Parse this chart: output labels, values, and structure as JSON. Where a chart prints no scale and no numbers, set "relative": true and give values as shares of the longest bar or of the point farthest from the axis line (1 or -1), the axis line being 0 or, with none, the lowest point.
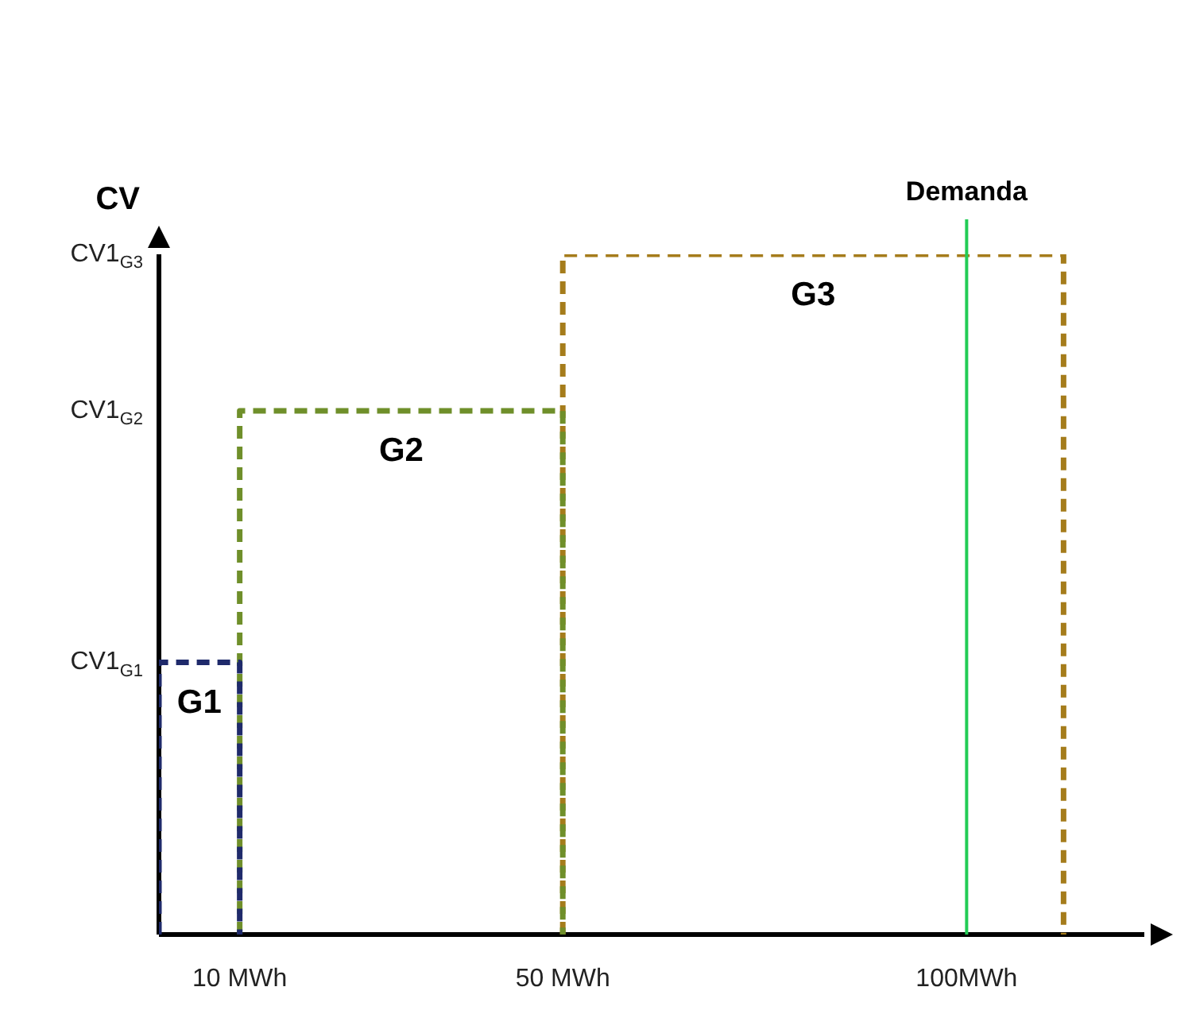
{
  "chart_data": {
    "type": "line",
    "ylabel": "CV",
    "xlim": [
      0,
      122
    ],
    "relative": true,
    "annotations": [
      "CV1$_{G1}$",
      "CV1$_{G2}$",
      "CV1$_{G3}$"
    ],
    "xticks": [
      {
        "value": 10,
        "label": "10 MWh"
      },
      {
        "value": 50,
        "label": "50 MWh"
      },
      {
        "value": 100,
        "label": "100MWh"
      }
    ],
    "marker": "none",
    "line_style": "dashed",
    "grid": false,
    "legend": false,
    "series": [
      {
        "name": "G1",
        "color": "#1f2a6b",
        "x": [
          0,
          0,
          10,
          10
        ],
        "values": [
          0,
          0.4,
          0.4,
          0
        ]
      },
      {
        "name": "G2",
        "color": "#6f8f2a",
        "x": [
          10,
          10,
          50,
          50
        ],
        "values": [
          0,
          0.77,
          0.77,
          0
        ]
      },
      {
        "name": "G3",
        "color": "#a57c1b",
        "x": [
          50,
          50,
          112,
          112
        ],
        "values": [
          0,
          1,
          1,
          0
        ]
      }
    ],
    "ref_lines": [
      {
        "axis": "x",
        "value": 100,
        "label": "Demanda",
        "color": "#22cc55",
        "line_style": "solid"
      }
    ]
  }
}
